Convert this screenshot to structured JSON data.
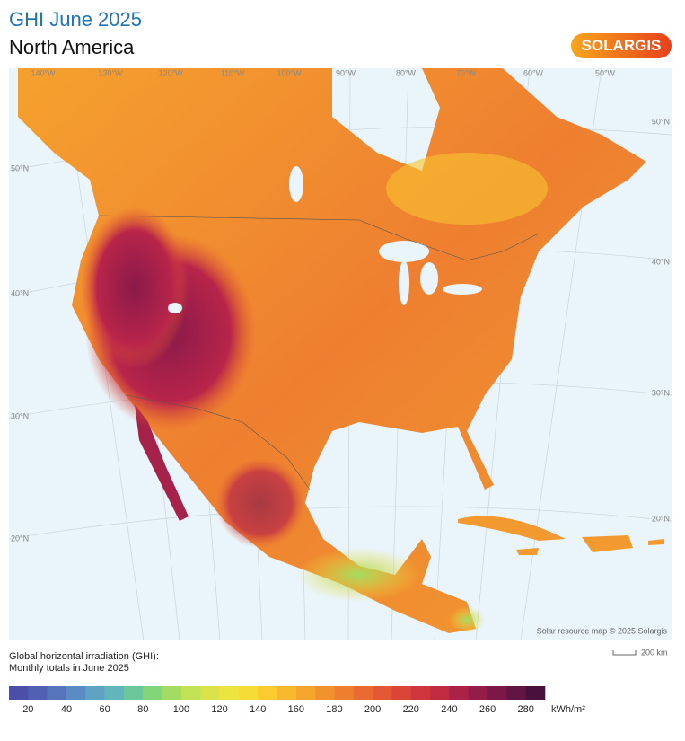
{
  "header": {
    "title": "GHI June 2025",
    "subtitle": "North America",
    "logo": "SOLARGIS"
  },
  "map": {
    "lon_labels": [
      "140°W",
      "130°W",
      "120°W",
      "110°W",
      "100°W",
      "90°W",
      "80°W",
      "70°W",
      "60°W",
      "50°W"
    ],
    "lat_labels_left": [
      "50°N",
      "40°N",
      "30°N",
      "20°N"
    ],
    "lat_labels_right": [
      "50°N",
      "40°N",
      "30°N",
      "20°N"
    ],
    "credit": "Solar resource map © 2025 Solargis",
    "scale_label": "200 km"
  },
  "legend": {
    "title_lines": [
      "Global horizontal irradiation (GHI):",
      "Monthly totals in June 2025"
    ],
    "unit": "kWh/m²",
    "range": [
      10,
      290
    ],
    "ticks": [
      20,
      40,
      60,
      80,
      100,
      120,
      140,
      160,
      180,
      200,
      220,
      240,
      260,
      280
    ],
    "colors": [
      "#4b4fa8",
      "#5160b3",
      "#5674bb",
      "#5b8bc2",
      "#5fa2c4",
      "#62b6bb",
      "#6cc79a",
      "#84d47a",
      "#a2dc63",
      "#c2e154",
      "#dbe34a",
      "#ede53f",
      "#f7dc36",
      "#fbcb30",
      "#f9b92e",
      "#f6a52e",
      "#f2922f",
      "#ee7f30",
      "#e96b31",
      "#e35733",
      "#db4537",
      "#cf353c",
      "#c02a42",
      "#ac2247",
      "#941c49",
      "#7b1848",
      "#621443",
      "#4a103c"
    ]
  }
}
